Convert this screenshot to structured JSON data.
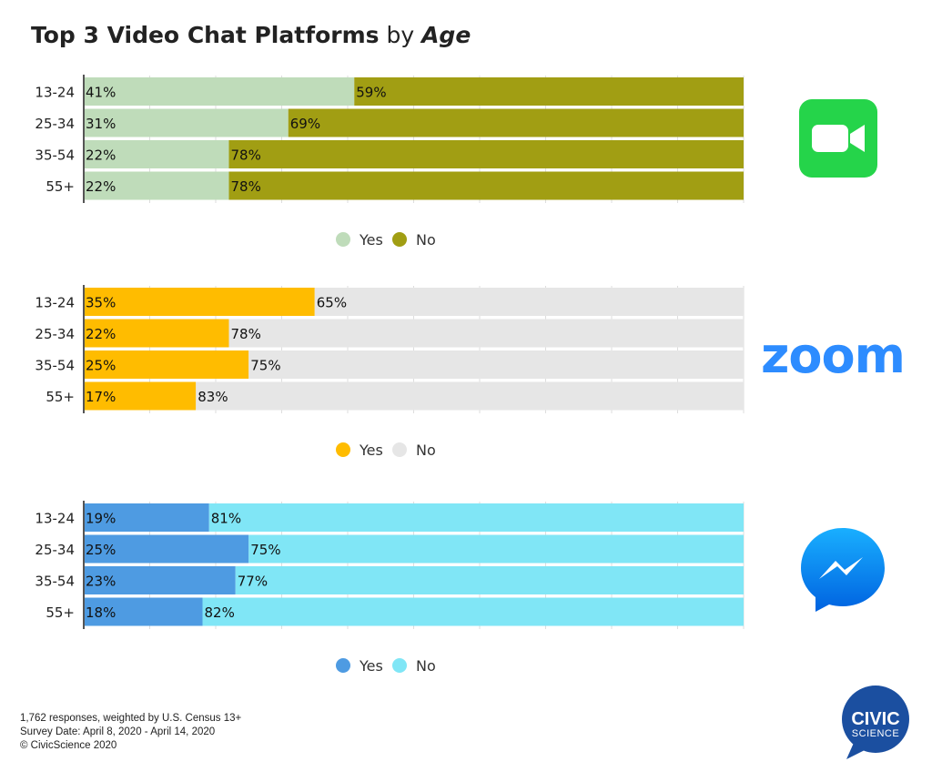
{
  "title": {
    "bold": "Top 3 Video Chat Platforms",
    "middle": " by ",
    "italic": "Age"
  },
  "footer": {
    "line1": "1,762 responses, weighted by U.S. Census 13+",
    "line2": "Survey Date: April 8, 2020 - April 14, 2020",
    "line3": "© CivicScience 2020"
  },
  "logos": {
    "facetime": "facetime-icon",
    "zoom_text": "zoom",
    "messenger": "messenger-icon",
    "civic_line1": "CIVIC",
    "civic_line2": "SCIENCE"
  },
  "chart_data": [
    {
      "type": "bar",
      "orientation": "horizontal",
      "stacked": true,
      "platform": "FaceTime",
      "categories": [
        "13-24",
        "25-34",
        "35-54",
        "55+"
      ],
      "series": [
        {
          "name": "Yes",
          "color": "#BFDCBA",
          "values": [
            41,
            31,
            22,
            22
          ]
        },
        {
          "name": "No",
          "color": "#A19E13",
          "values": [
            59,
            69,
            78,
            78
          ]
        }
      ],
      "data_labels": [
        [
          "41%",
          "59%"
        ],
        [
          "31%",
          "69%"
        ],
        [
          "22%",
          "78%"
        ],
        [
          "22%",
          "78%"
        ]
      ],
      "xlim": [
        0,
        100
      ],
      "grid": true,
      "legend": "bottom-center"
    },
    {
      "type": "bar",
      "orientation": "horizontal",
      "stacked": true,
      "platform": "Zoom",
      "categories": [
        "13-24",
        "25-34",
        "35-54",
        "55+"
      ],
      "series": [
        {
          "name": "Yes",
          "color": "#FFBC00",
          "values": [
            35,
            22,
            25,
            17
          ]
        },
        {
          "name": "No",
          "color": "#E6E6E6",
          "values": [
            65,
            78,
            75,
            83
          ]
        }
      ],
      "data_labels": [
        [
          "35%",
          "65%"
        ],
        [
          "22%",
          "78%"
        ],
        [
          "25%",
          "75%"
        ],
        [
          "17%",
          "83%"
        ]
      ],
      "xlim": [
        0,
        100
      ],
      "grid": true,
      "legend": "bottom-center"
    },
    {
      "type": "bar",
      "orientation": "horizontal",
      "stacked": true,
      "platform": "Messenger",
      "categories": [
        "13-24",
        "25-34",
        "35-54",
        "55+"
      ],
      "series": [
        {
          "name": "Yes",
          "color": "#4E9BE2",
          "values": [
            19,
            25,
            23,
            18
          ]
        },
        {
          "name": "No",
          "color": "#80E6F6",
          "values": [
            81,
            75,
            77,
            82
          ]
        }
      ],
      "data_labels": [
        [
          "19%",
          "81%"
        ],
        [
          "25%",
          "75%"
        ],
        [
          "23%",
          "77%"
        ],
        [
          "18%",
          "82%"
        ]
      ],
      "xlim": [
        0,
        100
      ],
      "grid": true,
      "legend": "bottom-center"
    }
  ]
}
